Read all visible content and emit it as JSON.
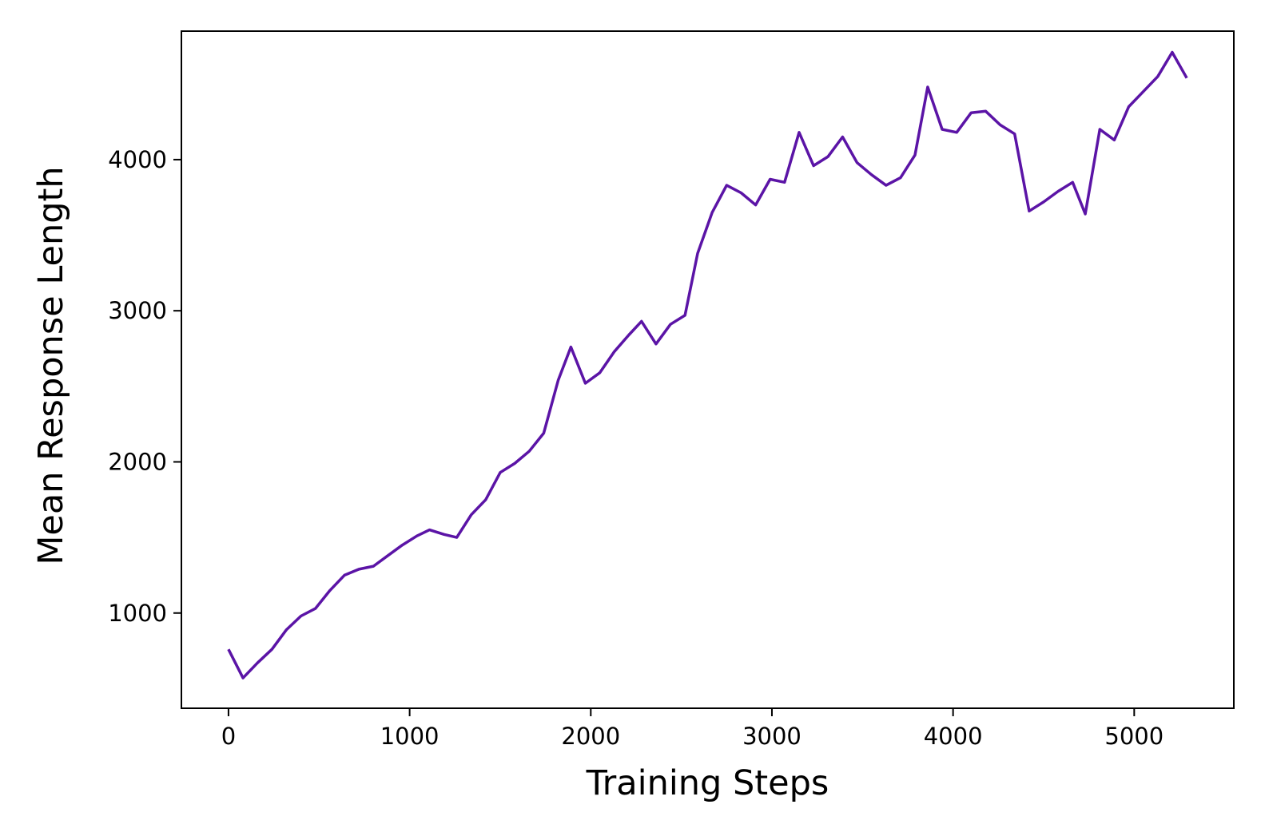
{
  "chart_data": {
    "type": "line",
    "title": "",
    "xlabel": "Training Steps",
    "ylabel": "Mean Response Length",
    "xlim": [
      -260,
      5550
    ],
    "ylim": [
      370,
      4850
    ],
    "xticks": [
      0,
      1000,
      2000,
      3000,
      4000,
      5000
    ],
    "yticks": [
      1000,
      2000,
      3000,
      4000
    ],
    "grid": false,
    "legend": "none",
    "series": [
      {
        "color": "#5b14a6",
        "x": [
          0,
          80,
          160,
          240,
          320,
          400,
          480,
          560,
          640,
          720,
          800,
          880,
          960,
          1040,
          1110,
          1190,
          1260,
          1340,
          1420,
          1500,
          1580,
          1660,
          1740,
          1820,
          1890,
          1970,
          2050,
          2130,
          2210,
          2280,
          2360,
          2440,
          2520,
          2590,
          2670,
          2750,
          2830,
          2910,
          2990,
          3070,
          3150,
          3230,
          3310,
          3390,
          3470,
          3550,
          3630,
          3710,
          3790,
          3860,
          3940,
          4020,
          4100,
          4180,
          4260,
          4340,
          4420,
          4500,
          4580,
          4660,
          4730,
          4810,
          4890,
          4970,
          5050,
          5130,
          5210,
          5290
        ],
        "y": [
          760,
          570,
          670,
          760,
          890,
          980,
          1030,
          1150,
          1250,
          1290,
          1310,
          1380,
          1450,
          1510,
          1550,
          1520,
          1500,
          1650,
          1750,
          1930,
          1990,
          2070,
          2190,
          2540,
          2760,
          2520,
          2590,
          2730,
          2840,
          2930,
          2780,
          2910,
          2970,
          3380,
          3650,
          3830,
          3780,
          3700,
          3870,
          3850,
          4180,
          3960,
          4020,
          4150,
          3980,
          3900,
          3830,
          3880,
          4030,
          4480,
          4200,
          4180,
          4310,
          4320,
          4230,
          4170,
          3660,
          3720,
          3790,
          3850,
          3640,
          4200,
          4130,
          4350,
          4450,
          4550,
          4710,
          4540
        ]
      }
    ]
  }
}
